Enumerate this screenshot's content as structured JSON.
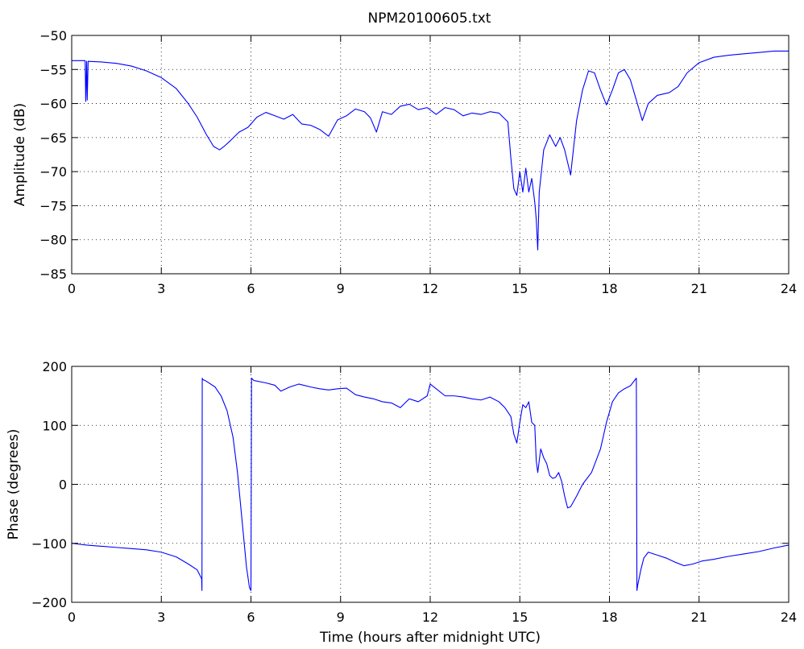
{
  "figure": {
    "title": "NPM20100605.txt",
    "background": "#ffffff",
    "line_color": "#0000ff",
    "grid_style": "dotted"
  },
  "chart_data": [
    {
      "type": "line",
      "title": "NPM20100605.txt",
      "xlabel": "",
      "ylabel": "Amplitude (dB)",
      "xlim": [
        0,
        24
      ],
      "ylim": [
        -85,
        -50
      ],
      "xticks": [
        0,
        3,
        6,
        9,
        12,
        15,
        18,
        21,
        24
      ],
      "yticks": [
        -85,
        -80,
        -75,
        -70,
        -65,
        -60,
        -55,
        -50
      ],
      "grid": true,
      "series": [
        {
          "color": "#0000ff",
          "x": [
            0,
            0.45,
            0.47,
            0.5,
            0.52,
            0.55,
            1.0,
            1.5,
            2.0,
            2.5,
            3.0,
            3.5,
            3.9,
            4.2,
            4.5,
            4.75,
            4.95,
            5.1,
            5.3,
            5.6,
            5.9,
            6.2,
            6.5,
            6.8,
            7.1,
            7.4,
            7.7,
            8.0,
            8.3,
            8.6,
            8.9,
            9.2,
            9.5,
            9.8,
            10.0,
            10.2,
            10.4,
            10.7,
            11.0,
            11.3,
            11.6,
            11.9,
            12.2,
            12.5,
            12.8,
            13.1,
            13.4,
            13.7,
            14.0,
            14.3,
            14.6,
            14.7,
            14.8,
            14.9,
            15.0,
            15.1,
            15.2,
            15.3,
            15.4,
            15.5,
            15.55,
            15.6,
            15.65,
            15.8,
            16.0,
            16.2,
            16.35,
            16.5,
            16.7,
            16.9,
            17.1,
            17.3,
            17.5,
            17.7,
            17.9,
            18.1,
            18.3,
            18.5,
            18.7,
            18.9,
            19.1,
            19.3,
            19.6,
            20.0,
            20.3,
            20.6,
            21.0,
            21.5,
            22.0,
            22.5,
            23.0,
            23.5,
            24.0
          ],
          "y": [
            -53.7,
            -53.7,
            -59.7,
            -53.8,
            -59.5,
            -53.8,
            -53.9,
            -54.1,
            -54.5,
            -55.2,
            -56.2,
            -57.8,
            -60.0,
            -62.0,
            -64.5,
            -66.3,
            -66.8,
            -66.3,
            -65.5,
            -64.2,
            -63.5,
            -62.0,
            -61.3,
            -61.8,
            -62.3,
            -61.6,
            -63.0,
            -63.2,
            -63.8,
            -64.8,
            -62.4,
            -61.8,
            -60.8,
            -61.2,
            -62.1,
            -64.2,
            -61.2,
            -61.6,
            -60.4,
            -60.1,
            -60.9,
            -60.6,
            -61.6,
            -60.6,
            -60.9,
            -61.8,
            -61.4,
            -61.6,
            -61.2,
            -61.4,
            -62.7,
            -68.0,
            -72.5,
            -73.5,
            -70.0,
            -73.0,
            -69.5,
            -73.0,
            -71.0,
            -74.5,
            -77.0,
            -81.5,
            -73.0,
            -66.8,
            -64.6,
            -66.3,
            -65.0,
            -66.8,
            -70.5,
            -62.5,
            -58.0,
            -55.2,
            -55.5,
            -58.0,
            -60.2,
            -58.0,
            -55.5,
            -55.0,
            -56.5,
            -59.5,
            -62.5,
            -60.0,
            -58.8,
            -58.4,
            -57.5,
            -55.5,
            -54.0,
            -53.2,
            -52.9,
            -52.7,
            -52.5,
            -52.3,
            -52.3
          ]
        }
      ]
    },
    {
      "type": "line",
      "title": "",
      "xlabel": "Time (hours after midnight UTC)",
      "ylabel": "Phase (degrees)",
      "xlim": [
        0,
        24
      ],
      "ylim": [
        -200,
        200
      ],
      "xticks": [
        0,
        3,
        6,
        9,
        12,
        15,
        18,
        21,
        24
      ],
      "yticks": [
        -200,
        -100,
        0,
        100,
        200
      ],
      "grid": true,
      "series": [
        {
          "color": "#0000ff",
          "x": [
            0,
            0.5,
            1.0,
            1.5,
            2.0,
            2.5,
            3.0,
            3.5,
            3.9,
            4.2,
            4.35,
            4.36,
            4.37,
            4.38,
            4.5,
            4.8,
            5.0,
            5.2,
            5.4,
            5.55,
            5.7,
            5.85,
            5.95,
            6.0,
            6.02,
            6.1,
            6.5,
            6.8,
            7.0,
            7.3,
            7.6,
            8.0,
            8.3,
            8.6,
            8.9,
            9.2,
            9.5,
            9.8,
            10.1,
            10.4,
            10.7,
            11.0,
            11.3,
            11.6,
            11.9,
            12.0,
            12.2,
            12.5,
            12.8,
            13.1,
            13.4,
            13.7,
            14.0,
            14.3,
            14.5,
            14.7,
            14.8,
            14.9,
            15.0,
            15.1,
            15.2,
            15.3,
            15.4,
            15.5,
            15.55,
            15.6,
            15.7,
            15.8,
            15.9,
            16.0,
            16.1,
            16.2,
            16.3,
            16.4,
            16.5,
            16.6,
            16.7,
            16.9,
            17.1,
            17.4,
            17.7,
            17.9,
            18.1,
            18.3,
            18.5,
            18.7,
            18.9,
            18.92,
            18.95,
            19.05,
            19.15,
            19.3,
            19.6,
            19.9,
            20.2,
            20.5,
            20.8,
            21.1,
            21.5,
            22.0,
            22.5,
            23.0,
            23.5,
            24.0
          ],
          "y": [
            -100,
            -103,
            -105,
            -107,
            -109,
            -111,
            -115,
            -123,
            -135,
            -145,
            -160,
            -180,
            180,
            178,
            175,
            165,
            150,
            125,
            80,
            20,
            -60,
            -140,
            -175,
            -180,
            180,
            176,
            172,
            168,
            158,
            165,
            170,
            165,
            162,
            160,
            162,
            163,
            152,
            148,
            145,
            140,
            138,
            130,
            145,
            140,
            150,
            170,
            162,
            150,
            150,
            148,
            145,
            143,
            148,
            140,
            130,
            115,
            85,
            70,
            105,
            135,
            130,
            140,
            105,
            100,
            40,
            20,
            60,
            45,
            35,
            15,
            10,
            12,
            20,
            5,
            -20,
            -40,
            -38,
            -20,
            0,
            20,
            60,
            105,
            140,
            155,
            162,
            167,
            180,
            -180,
            -170,
            -145,
            -125,
            -115,
            -120,
            -125,
            -132,
            -138,
            -135,
            -130,
            -127,
            -122,
            -118,
            -114,
            -108,
            -103
          ]
        }
      ]
    }
  ]
}
